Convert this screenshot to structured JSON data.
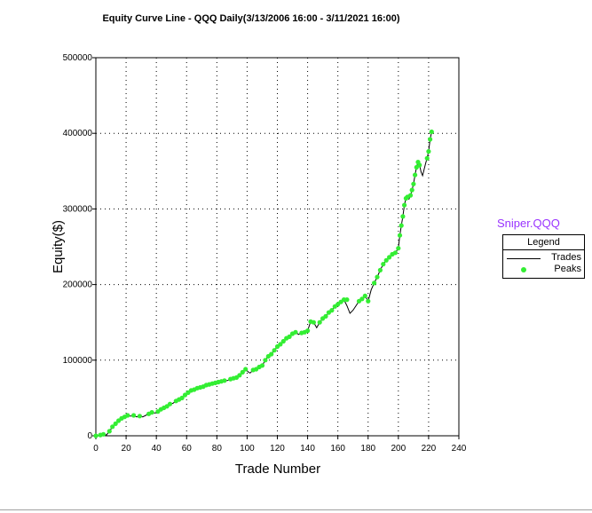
{
  "chart_data": {
    "type": "line",
    "title": "Equity Curve Line - QQQ Daily(3/13/2006 16:00 - 3/11/2021 16:00)",
    "xlabel": "Trade Number",
    "ylabel": "Equity($)",
    "xlim": [
      0,
      240
    ],
    "ylim": [
      0,
      500000
    ],
    "xticks": [
      "0",
      "20",
      "40",
      "60",
      "80",
      "100",
      "120",
      "140",
      "160",
      "180",
      "200",
      "220",
      "240"
    ],
    "yticks": [
      "0",
      "100000",
      "200000",
      "300000",
      "400000",
      "500000"
    ],
    "grid": true,
    "legend_position": "right",
    "strategy_label": "Sniper.QQQ",
    "legend_title": "Legend",
    "series": [
      {
        "name": "Trades",
        "color": "#000000",
        "x": [
          0,
          3,
          5,
          7,
          9,
          11,
          13,
          15,
          17,
          19,
          21,
          23,
          25,
          27,
          29,
          31,
          33,
          35,
          37,
          39,
          41,
          43,
          45,
          47,
          49,
          51,
          53,
          55,
          57,
          59,
          61,
          63,
          65,
          67,
          69,
          71,
          73,
          75,
          77,
          79,
          81,
          83,
          85,
          87,
          89,
          91,
          93,
          95,
          97,
          99,
          101,
          102,
          104,
          106,
          108,
          110,
          112,
          114,
          116,
          118,
          120,
          122,
          124,
          126,
          128,
          130,
          132,
          134,
          136,
          138,
          140,
          142,
          144,
          146,
          148,
          150,
          152,
          154,
          156,
          158,
          160,
          162,
          164,
          166,
          168,
          170,
          172,
          174,
          176,
          178,
          180,
          182,
          184,
          186,
          188,
          190,
          192,
          194,
          196,
          198,
          200,
          201,
          202,
          203,
          204,
          205,
          206,
          207,
          208,
          209,
          210,
          211,
          212,
          213,
          214,
          215,
          216,
          217,
          218,
          219,
          220,
          221,
          222
        ],
        "y": [
          0,
          1000,
          2000,
          1000,
          6000,
          12000,
          16000,
          20000,
          23000,
          25000,
          27000,
          26000,
          27000,
          25000,
          26000,
          25000,
          27000,
          29000,
          31000,
          30000,
          32000,
          35000,
          37000,
          39000,
          42000,
          43000,
          46000,
          48000,
          50000,
          54000,
          57000,
          60000,
          61000,
          63000,
          64000,
          65000,
          67000,
          68000,
          69000,
          70000,
          71000,
          72000,
          73000,
          73000,
          75000,
          76000,
          77000,
          80000,
          84000,
          88000,
          84000,
          83000,
          87000,
          88000,
          91000,
          93000,
          100000,
          105000,
          108000,
          113000,
          118000,
          121000,
          125000,
          129000,
          131000,
          135000,
          137000,
          134000,
          136000,
          137000,
          139000,
          151000,
          150000,
          143000,
          150000,
          155000,
          158000,
          163000,
          166000,
          171000,
          174000,
          177000,
          180000,
          172000,
          162000,
          166000,
          172000,
          178000,
          181000,
          185000,
          178000,
          193000,
          202000,
          210000,
          219000,
          227000,
          232000,
          236000,
          240000,
          242000,
          248000,
          265000,
          278000,
          290000,
          305000,
          314000,
          316000,
          313000,
          318000,
          325000,
          333000,
          345000,
          355000,
          362000,
          358000,
          349000,
          344000,
          352000,
          360000,
          367000,
          376000,
          392000,
          402000
        ]
      },
      {
        "name": "Peaks",
        "color": "#33ee33",
        "x": [
          0,
          3,
          5,
          9,
          11,
          13,
          15,
          17,
          19,
          21,
          25,
          29,
          35,
          37,
          41,
          43,
          45,
          47,
          49,
          53,
          55,
          57,
          59,
          61,
          63,
          65,
          67,
          69,
          71,
          73,
          75,
          77,
          79,
          81,
          83,
          85,
          89,
          91,
          93,
          95,
          97,
          99,
          104,
          106,
          108,
          110,
          112,
          114,
          116,
          118,
          120,
          122,
          124,
          126,
          128,
          130,
          132,
          136,
          138,
          140,
          142,
          144,
          148,
          150,
          152,
          154,
          156,
          158,
          160,
          162,
          164,
          166,
          174,
          176,
          178,
          180,
          184,
          186,
          188,
          190,
          192,
          194,
          196,
          198,
          200,
          201,
          202,
          203,
          204,
          205,
          206,
          208,
          209,
          210,
          211,
          212,
          213,
          214,
          219,
          220,
          221,
          222
        ],
        "y": [
          0,
          1000,
          2000,
          6000,
          12000,
          16000,
          20000,
          23000,
          25000,
          27000,
          27000,
          26000,
          29000,
          31000,
          32000,
          35000,
          37000,
          39000,
          42000,
          46000,
          48000,
          50000,
          54000,
          57000,
          60000,
          61000,
          63000,
          64000,
          65000,
          67000,
          68000,
          69000,
          70000,
          71000,
          72000,
          73000,
          75000,
          76000,
          77000,
          80000,
          84000,
          88000,
          87000,
          88000,
          91000,
          93000,
          100000,
          105000,
          108000,
          113000,
          118000,
          121000,
          125000,
          129000,
          131000,
          135000,
          137000,
          136000,
          137000,
          139000,
          151000,
          150000,
          150000,
          155000,
          158000,
          163000,
          166000,
          171000,
          174000,
          177000,
          180000,
          180000,
          178000,
          181000,
          185000,
          178000,
          202000,
          210000,
          219000,
          227000,
          232000,
          236000,
          240000,
          242000,
          248000,
          265000,
          278000,
          290000,
          305000,
          314000,
          316000,
          318000,
          325000,
          333000,
          345000,
          355000,
          362000,
          358000,
          367000,
          376000,
          392000,
          402000
        ]
      }
    ]
  }
}
